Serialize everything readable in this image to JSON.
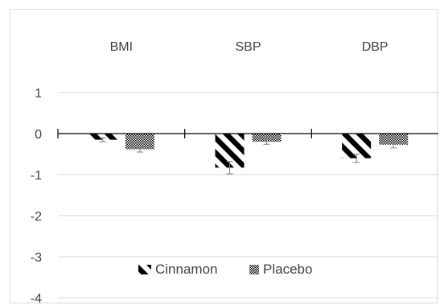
{
  "chart_data": {
    "type": "bar",
    "categories": [
      "BMI",
      "SBP",
      "DBP"
    ],
    "series": [
      {
        "name": "Cinnamon",
        "values": [
          -0.15,
          -0.83,
          -0.6
        ],
        "errors": [
          0.05,
          0.15,
          0.1
        ],
        "pattern": "wide-diagonal-stripes"
      },
      {
        "name": "Placebo",
        "values": [
          -0.38,
          -0.2,
          -0.27
        ],
        "errors": [
          0.07,
          0.06,
          0.08
        ],
        "pattern": "dotted-checker"
      }
    ],
    "y_ticks": [
      "1",
      "0",
      "-1",
      "-2",
      "-3",
      "-4"
    ],
    "ylim": [
      -4,
      1.6
    ],
    "grid": true,
    "legend_position": "bottom",
    "category_labels_position": "top",
    "colors": {
      "bar_ink": "#000000",
      "grid": "#d9d9d9",
      "axis": "#000000",
      "text": "#404040"
    }
  }
}
